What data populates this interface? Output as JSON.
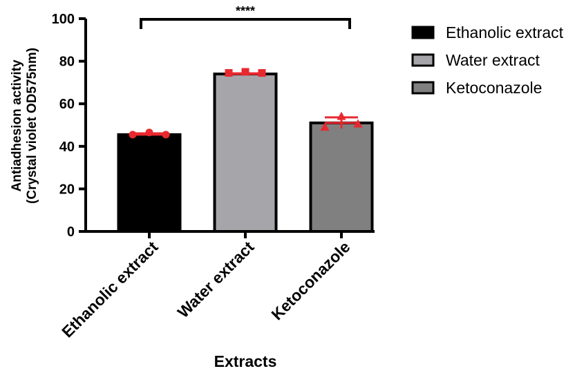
{
  "chart_data": {
    "type": "bar",
    "categories": [
      "Ethanolic extract",
      "Water extract",
      "Ketoconazole"
    ],
    "values": [
      45.5,
      74,
      51
    ],
    "colors": [
      "#000000",
      "#a6a5a9",
      "#808080"
    ],
    "points": [
      {
        "values": [
          45.5,
          46.5,
          45.5
        ],
        "marker": "circle"
      },
      {
        "values": [
          74.5,
          75,
          74.5
        ],
        "marker": "square"
      },
      {
        "values": [
          49,
          54,
          50.5
        ],
        "marker": "triangle"
      }
    ],
    "errors": [
      0.6,
      0.3,
      2.6
    ],
    "point_color": "#e8282f",
    "xlabel": "Extracts",
    "ylabel_lines": [
      "Antiadhesion activity",
      "(Crystal violet OD575nm)"
    ],
    "ylim": [
      0,
      100
    ],
    "yticks": [
      0,
      20,
      40,
      60,
      80,
      100
    ],
    "significance": {
      "label": "****",
      "from": 0,
      "to": 2
    },
    "legend": {
      "position": "right",
      "entries": [
        {
          "name": "Ethanolic extract",
          "color": "#000000"
        },
        {
          "name": "Water extract",
          "color": "#a6a5a9"
        },
        {
          "name": "Ketoconazole",
          "color": "#808080"
        }
      ]
    }
  }
}
